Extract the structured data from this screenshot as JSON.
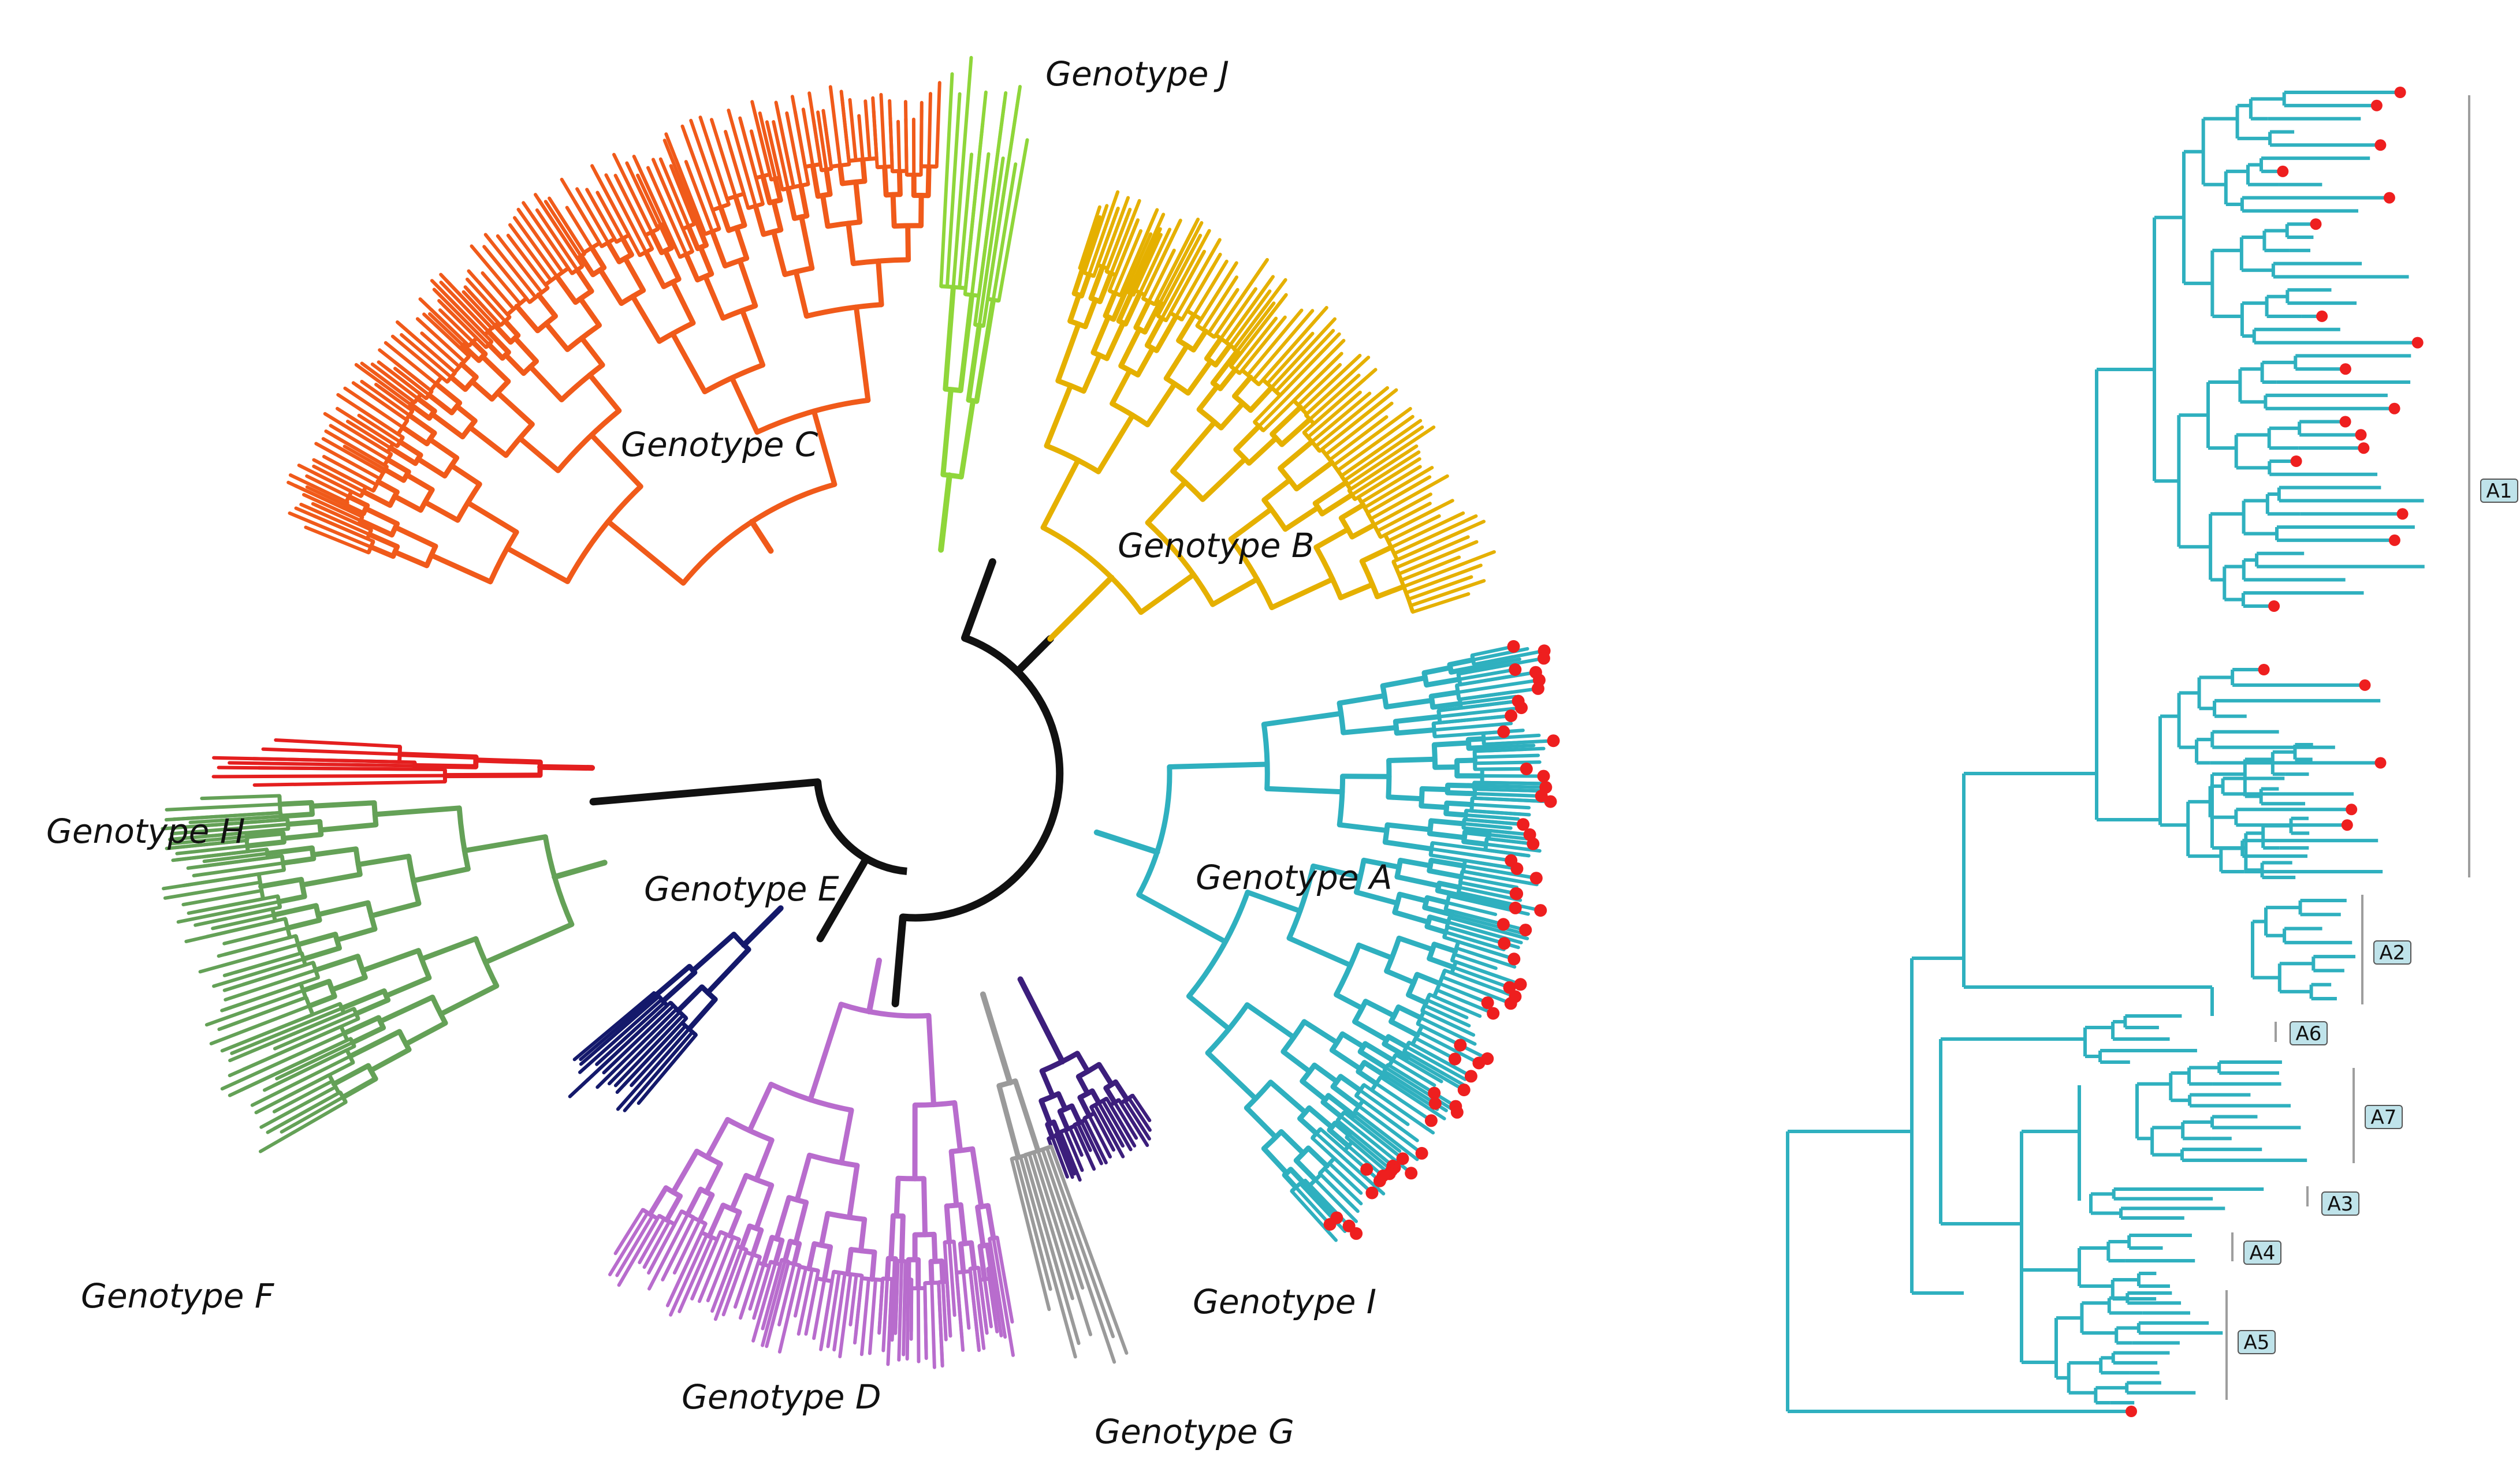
{
  "figure": {
    "radial_tree": {
      "backbone_color": "#111111",
      "genotypes": [
        {
          "key": "A",
          "label": "Genotype A",
          "color": "#2fb0bf",
          "has_markers": true
        },
        {
          "key": "B",
          "label": "Genotype B",
          "color": "#e5b000"
        },
        {
          "key": "C",
          "label": "Genotype C",
          "color": "#f05a1a"
        },
        {
          "key": "D",
          "label": "Genotype D",
          "color": "#b86ccd"
        },
        {
          "key": "E",
          "label": "Genotype E",
          "color": "#14196b"
        },
        {
          "key": "F",
          "label": "Genotype F",
          "color": "#64a157"
        },
        {
          "key": "G",
          "label": "Genotype G",
          "color": "#9a9a9a"
        },
        {
          "key": "H",
          "label": "Genotype H",
          "color": "#e41f1f"
        },
        {
          "key": "I",
          "label": "Genotype I",
          "color": "#3c1e7c"
        },
        {
          "key": "J",
          "label": "Genotype J",
          "color": "#8fd63a"
        }
      ]
    },
    "subgenotype_tree": {
      "color": "#2fb0bf",
      "marker_color": "#ee1f1f",
      "label_fill": "#bfe3ea",
      "subgenotypes": [
        "A1",
        "A2",
        "A6",
        "A7",
        "A3",
        "A4",
        "A5"
      ]
    }
  }
}
